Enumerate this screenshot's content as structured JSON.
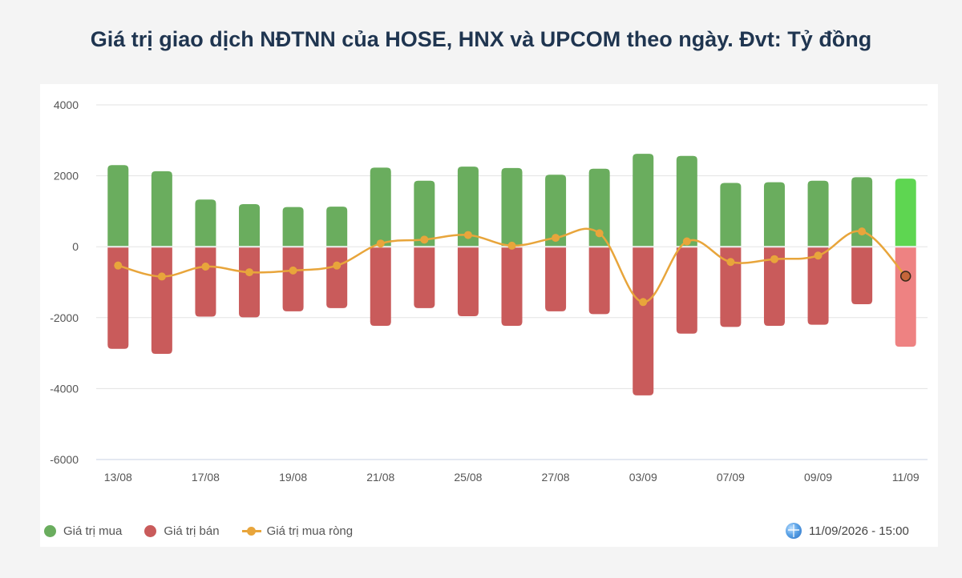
{
  "title": "Giá trị giao dịch NĐTNN của HOSE, HNX và UPCOM theo ngày. Đvt: Tỷ đồng",
  "timestamp": "11/09/2026 - 15:00",
  "legend": {
    "buy": "Giá trị mua",
    "sell": "Giá trị bán",
    "net": "Giá trị mua ròng"
  },
  "colors": {
    "buy": "#6aad5e",
    "sell": "#c95b5b",
    "net": "#e8a53b",
    "buy_highlight": "#5ed651",
    "sell_highlight": "#ee8282",
    "grid": "#e3e3e3",
    "axis_text": "#555555"
  },
  "chart_data": {
    "type": "bar",
    "title": "Giá trị giao dịch NĐTNN của HOSE, HNX và UPCOM theo ngày. Đvt: Tỷ đồng",
    "xlabel": "",
    "ylabel": "",
    "ylim": [
      -6000,
      4000
    ],
    "yticks": [
      4000,
      2000,
      0,
      -2000,
      -4000,
      -6000
    ],
    "grid": true,
    "legend_position": "bottom-left",
    "categories": [
      "13/08",
      "",
      "17/08",
      "",
      "19/08",
      "",
      "21/08",
      "",
      "25/08",
      "",
      "27/08",
      "",
      "03/09",
      "",
      "07/09",
      "",
      "09/09",
      "",
      "11/09"
    ],
    "series": [
      {
        "name": "Giá trị mua",
        "type": "bar",
        "values": [
          2300,
          2130,
          1330,
          1200,
          1120,
          1130,
          2230,
          1860,
          2260,
          2220,
          2030,
          2200,
          2620,
          2560,
          1800,
          1820,
          1860,
          1960,
          1920
        ]
      },
      {
        "name": "Giá trị bán",
        "type": "bar",
        "values": [
          -2880,
          -3020,
          -1970,
          -1990,
          -1820,
          -1730,
          -2230,
          -1730,
          -1960,
          -2230,
          -1820,
          -1900,
          -4190,
          -2450,
          -2260,
          -2230,
          -2200,
          -1620,
          -2820
        ]
      },
      {
        "name": "Giá trị mua ròng",
        "type": "line",
        "values": [
          -530,
          -840,
          -560,
          -720,
          -670,
          -530,
          90,
          200,
          330,
          30,
          250,
          380,
          -1560,
          150,
          -430,
          -350,
          -250,
          430,
          -830
        ]
      }
    ]
  }
}
